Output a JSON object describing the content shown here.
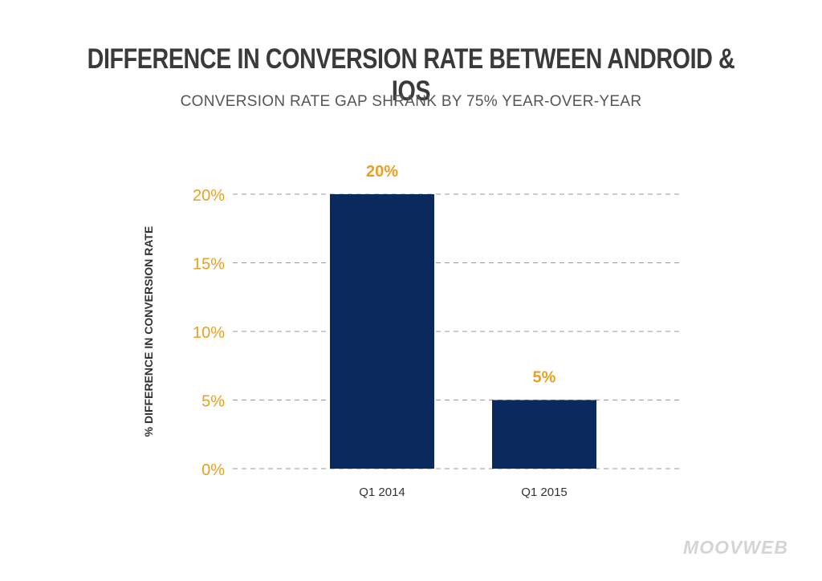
{
  "colors": {
    "bar": "#0a2a5e",
    "accent": "#e8a020",
    "grid": "#999999"
  },
  "chart_data": {
    "type": "bar",
    "title": "DIFFERENCE IN CONVERSION RATE BETWEEN ANDROID & IOS",
    "subtitle": "CONVERSION RATE GAP SHRANK BY 75% YEAR-OVER-YEAR",
    "xlabel": "",
    "ylabel": "% DIFFERENCE IN CONVERSION RATE",
    "categories": [
      "Q1 2014",
      "Q1 2015"
    ],
    "values": [
      20,
      5
    ],
    "data_labels": [
      "20%",
      "5%"
    ],
    "ylim": [
      0,
      20
    ],
    "yticks": [
      0,
      5,
      10,
      15,
      20
    ],
    "ytick_labels": [
      "0%",
      "5%",
      "10%",
      "15%",
      "20%"
    ],
    "grid": true
  },
  "brand": {
    "logo_text": "MOOVWEB"
  }
}
